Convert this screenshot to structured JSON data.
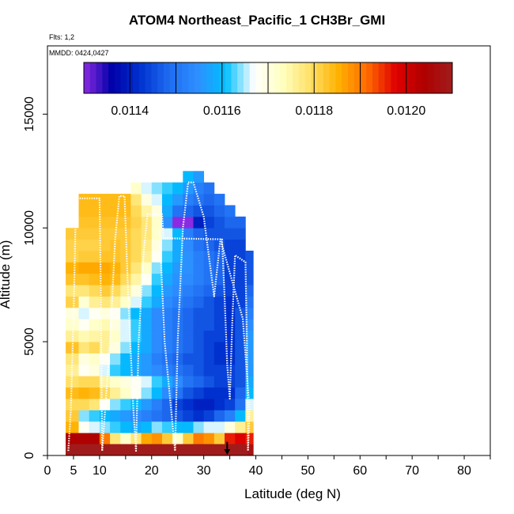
{
  "title": "ATOM4 Northeast_Pacific_1 CH3Br_GMI",
  "flights_label": "Flts: 1,2",
  "mmdd_label": "MMDD: 0424,0427",
  "chart_data": {
    "type": "heatmap",
    "title": "ATOM4 Northeast_Pacific_1 CH3Br_GMI",
    "xlabel": "Latitude (deg N)",
    "ylabel": "Altitude (m)",
    "xlim": [
      0,
      85
    ],
    "ylim": [
      0,
      18000
    ],
    "x_ticks": [
      0,
      5,
      10,
      20,
      30,
      40,
      50,
      60,
      70,
      80
    ],
    "y_ticks": [
      0,
      5000,
      10000,
      15000
    ],
    "colorbar": {
      "range": [
        0.0113,
        0.0121
      ],
      "tick_values": [
        0.0114,
        0.0116,
        0.0118,
        0.012
      ],
      "tick_labels": [
        "0.0114",
        "0.0116",
        "0.0118",
        "0.0120"
      ],
      "colors": [
        "#8A2BE2",
        "#0000A8",
        "#0033D0",
        "#1E6BF0",
        "#2E8EFF",
        "#00BFFF",
        "#FFFFFF",
        "#FFFFC0",
        "#FFE066",
        "#FFB000",
        "#FF6A00",
        "#E00000",
        "#B00000",
        "#A01C1C"
      ]
    },
    "columns": [
      {
        "lat_range": [
          3.5,
          6
        ],
        "top": 10000,
        "values": [
          0.01208,
          0.01204,
          0.01185,
          0.01182,
          0.0118,
          0.01184,
          0.01179,
          0.01176,
          0.01178,
          0.01183,
          0.01176,
          0.01172,
          0.0117,
          0.01181,
          0.01178,
          0.01183,
          0.01185,
          0.01181,
          0.01181,
          0.01182,
          0.01183
        ]
      },
      {
        "lat_range": [
          6,
          8
        ],
        "top": 11500,
        "values": [
          0.01208,
          0.01204,
          0.01168,
          0.01164,
          0.0118,
          0.01185,
          0.0118,
          0.01168,
          0.0117,
          0.01178,
          0.01174,
          0.01168,
          0.01166,
          0.01171,
          0.01178,
          0.01183,
          0.01186,
          0.01182,
          0.01181,
          0.01182,
          0.01183,
          0.01184,
          0.01184,
          0.01184
        ]
      },
      {
        "lat_range": [
          8,
          10
        ],
        "top": 11500,
        "values": [
          0.01208,
          0.01204,
          0.01166,
          0.01162,
          0.01178,
          0.01184,
          0.0118,
          0.0117,
          0.01172,
          0.0118,
          0.01175,
          0.01172,
          0.01168,
          0.01176,
          0.0118,
          0.01184,
          0.01186,
          0.01182,
          0.01181,
          0.01182,
          0.01183,
          0.01184,
          0.01184,
          0.01184
        ]
      },
      {
        "lat_range": [
          10,
          12
        ],
        "top": 11500,
        "values": [
          0.01208,
          0.0119,
          0.01164,
          0.0116,
          0.01168,
          0.0118,
          0.01175,
          0.01166,
          0.01168,
          0.01176,
          0.01176,
          0.01174,
          0.0117,
          0.01178,
          0.01182,
          0.01185,
          0.01186,
          0.01183,
          0.01182,
          0.01182,
          0.01183,
          0.01184,
          0.01184,
          0.01184
        ]
      },
      {
        "lat_range": [
          12,
          14
        ],
        "top": 11500,
        "values": [
          0.01208,
          0.01178,
          0.01162,
          0.01158,
          0.01164,
          0.01176,
          0.01172,
          0.01162,
          0.01164,
          0.0117,
          0.01172,
          0.0117,
          0.01168,
          0.01176,
          0.0118,
          0.01184,
          0.01185,
          0.01183,
          0.01183,
          0.01182,
          0.01183,
          0.01184,
          0.01184,
          0.01184
        ]
      },
      {
        "lat_range": [
          14,
          16
        ],
        "top": 11500,
        "values": [
          0.01208,
          0.01172,
          0.0116,
          0.01156,
          0.01162,
          0.01172,
          0.0117,
          0.0116,
          0.0116,
          0.01164,
          0.01166,
          0.01166,
          0.01164,
          0.01172,
          0.01176,
          0.0118,
          0.01182,
          0.01182,
          0.01182,
          0.01182,
          0.01183,
          0.01184,
          0.01184,
          0.01184
        ]
      },
      {
        "lat_range": [
          16,
          18
        ],
        "top": 12000,
        "values": [
          0.01208,
          0.01178,
          0.01158,
          0.01154,
          0.0116,
          0.01168,
          0.01168,
          0.01158,
          0.01158,
          0.0116,
          0.01162,
          0.01162,
          0.0116,
          0.01166,
          0.0117,
          0.01175,
          0.01178,
          0.0118,
          0.0118,
          0.0118,
          0.01181,
          0.0118,
          0.01178,
          0.01172,
          0.01166
        ]
      },
      {
        "lat_range": [
          18,
          20
        ],
        "top": 12000,
        "values": [
          0.01208,
          0.01186,
          0.0116,
          0.01152,
          0.01156,
          0.01164,
          0.01166,
          0.01156,
          0.01156,
          0.01158,
          0.01158,
          0.01158,
          0.01158,
          0.01162,
          0.01164,
          0.01168,
          0.01172,
          0.01176,
          0.01177,
          0.01178,
          0.01178,
          0.01175,
          0.0117,
          0.01166,
          0.01164
        ]
      },
      {
        "lat_range": [
          20,
          22
        ],
        "top": 12000,
        "values": [
          0.01208,
          0.01188,
          0.01164,
          0.0115,
          0.01152,
          0.0116,
          0.01162,
          0.01154,
          0.01152,
          0.01154,
          0.01154,
          0.01154,
          0.01154,
          0.01158,
          0.0116,
          0.01162,
          0.01164,
          0.01168,
          0.0117,
          0.01172,
          0.01172,
          0.0117,
          0.01166,
          0.01164,
          0.01163
        ]
      },
      {
        "lat_range": [
          22,
          24
        ],
        "top": 12000,
        "values": [
          0.01208,
          0.01182,
          0.01162,
          0.01148,
          0.01148,
          0.01154,
          0.01158,
          0.01152,
          0.0115,
          0.01152,
          0.01152,
          0.01152,
          0.01152,
          0.01154,
          0.01156,
          0.01158,
          0.0116,
          0.01162,
          0.01164,
          0.01166,
          0.01155,
          0.01158,
          0.0116,
          0.01162,
          0.01162
        ]
      },
      {
        "lat_range": [
          24,
          26
        ],
        "top": 12000,
        "values": [
          0.01208,
          0.01172,
          0.0116,
          0.01146,
          0.01144,
          0.0115,
          0.01154,
          0.0115,
          0.01148,
          0.0115,
          0.0115,
          0.0115,
          0.0115,
          0.01152,
          0.01154,
          0.01155,
          0.01156,
          0.01158,
          0.01158,
          0.0116,
          0.01125,
          0.0115,
          0.01156,
          0.0116,
          0.01162
        ]
      },
      {
        "lat_range": [
          26,
          28
        ],
        "top": 12500,
        "values": [
          0.01208,
          0.01182,
          0.0116,
          0.01144,
          0.01142,
          0.01146,
          0.0115,
          0.01148,
          0.01146,
          0.01148,
          0.01148,
          0.01148,
          0.01148,
          0.0115,
          0.01152,
          0.01154,
          0.01155,
          0.01155,
          0.01154,
          0.01152,
          0.0113,
          0.01148,
          0.01152,
          0.01156,
          0.0116,
          0.01164
        ]
      },
      {
        "lat_range": [
          28,
          30
        ],
        "top": 12500,
        "values": [
          0.01208,
          0.0119,
          0.01164,
          0.01142,
          0.0114,
          0.01144,
          0.01148,
          0.01146,
          0.01146,
          0.01146,
          0.01146,
          0.01146,
          0.01146,
          0.01148,
          0.0115,
          0.01152,
          0.01152,
          0.01152,
          0.0115,
          0.01148,
          0.0114,
          0.01146,
          0.0115,
          0.01152,
          0.01156,
          0.01158
        ]
      },
      {
        "lat_range": [
          30,
          32
        ],
        "top": 12000,
        "values": [
          0.01208,
          0.01188,
          0.01166,
          0.01144,
          0.0114,
          0.01142,
          0.01146,
          0.01144,
          0.01144,
          0.01144,
          0.01144,
          0.01146,
          0.01146,
          0.01146,
          0.01148,
          0.0115,
          0.0115,
          0.0115,
          0.01148,
          0.01146,
          0.01144,
          0.01146,
          0.01148,
          0.0115,
          0.01154
        ]
      },
      {
        "lat_range": [
          32,
          34
        ],
        "top": 11500,
        "values": [
          0.01208,
          0.01182,
          0.01166,
          0.01148,
          0.01142,
          0.01142,
          0.01144,
          0.01144,
          0.01142,
          0.01142,
          0.01144,
          0.01144,
          0.01144,
          0.01144,
          0.01146,
          0.01148,
          0.01148,
          0.01148,
          0.01146,
          0.01146,
          0.01146,
          0.01148,
          0.0115,
          0.01152
        ]
      },
      {
        "lat_range": [
          34,
          36
        ],
        "top": 11000,
        "values": [
          0.01208,
          0.01196,
          0.0117,
          0.01152,
          0.01144,
          0.01142,
          0.01144,
          0.01144,
          0.01142,
          0.01142,
          0.01142,
          0.01142,
          0.01142,
          0.01142,
          0.01144,
          0.01144,
          0.01144,
          0.01144,
          0.01144,
          0.01146,
          0.01148,
          0.0115
        ]
      },
      {
        "lat_range": [
          36,
          38
        ],
        "top": 10500,
        "values": [
          0.01208,
          0.01198,
          0.01176,
          0.0116,
          0.0115,
          0.01148,
          0.01146,
          0.01146,
          0.01146,
          0.01146,
          0.01146,
          0.01146,
          0.01146,
          0.01144,
          0.01144,
          0.01144,
          0.01144,
          0.01144,
          0.01144,
          0.01146,
          0.01148
        ]
      },
      {
        "lat_range": [
          38,
          39.5
        ],
        "top": 9000,
        "values": [
          0.01208,
          0.01196,
          0.01182,
          0.01176,
          0.01166,
          0.0116,
          0.01158,
          0.01156,
          0.01156,
          0.01156,
          0.01156,
          0.01154,
          0.01152,
          0.0115,
          0.01148,
          0.01146,
          0.01146,
          0.01146
        ]
      }
    ],
    "bottom_band": {
      "lat_range": [
        3.5,
        38.5
      ],
      "alt_range": [
        0,
        500
      ],
      "value": 0.0121
    },
    "flight_track": [
      [
        4,
        200
      ],
      [
        4.5,
        2000
      ],
      [
        5,
        6000
      ],
      [
        5.5,
        11300
      ],
      [
        10,
        11300
      ],
      [
        10.2,
        8000
      ],
      [
        10.5,
        200
      ],
      [
        12,
        5000
      ],
      [
        13,
        9500
      ],
      [
        13.8,
        11400
      ],
      [
        14.8,
        11400
      ],
      [
        15.5,
        7000
      ],
      [
        16.5,
        2000
      ],
      [
        17,
        200
      ],
      [
        17.5,
        5000
      ],
      [
        18.5,
        9000
      ],
      [
        19.2,
        10600
      ],
      [
        22,
        10600
      ],
      [
        22.3,
        9550
      ],
      [
        33.5,
        9500
      ],
      [
        34,
        7000
      ],
      [
        34.5,
        4000
      ],
      [
        35,
        2500
      ],
      [
        35.5,
        6000
      ],
      [
        36,
        8800
      ],
      [
        38,
        8500
      ],
      [
        38.3,
        5000
      ],
      [
        38.5,
        200
      ],
      [
        38.8,
        2000
      ],
      [
        37.5,
        6000
      ],
      [
        33.2,
        9500
      ],
      [
        32,
        7000
      ],
      [
        30,
        10500
      ],
      [
        28,
        12000
      ],
      [
        27,
        12000
      ],
      [
        26,
        10000
      ],
      [
        25,
        5000
      ],
      [
        24.5,
        200
      ],
      [
        22.5,
        5000
      ],
      [
        21.5,
        10000
      ]
    ],
    "arrow_marker": {
      "lat": 34.5,
      "alt_top": 600,
      "alt_bottom": 0
    }
  }
}
